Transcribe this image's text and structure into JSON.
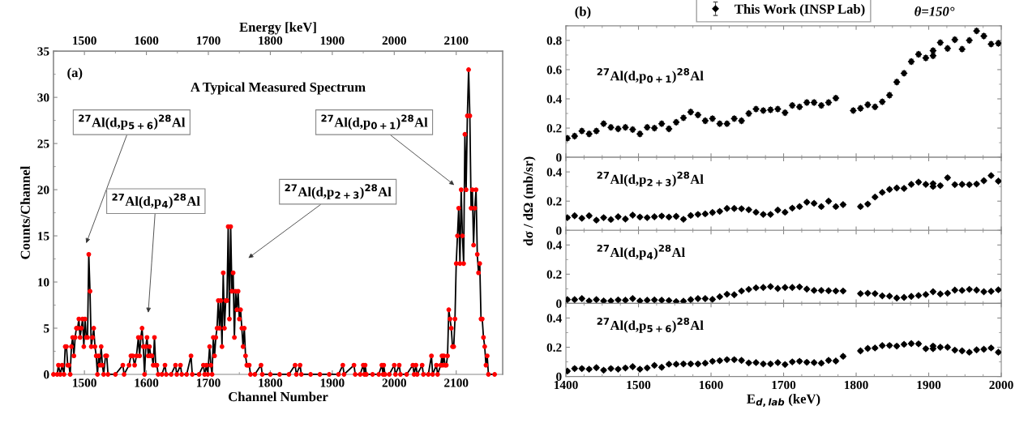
{
  "chart_data": [
    {
      "type": "line",
      "title": "A Typical Measured Spectrum",
      "xlabel": "Channel Number",
      "ylabel": "Counts/Channel",
      "x2label": "Energy [keV]",
      "xlim": [
        1450,
        2175
      ],
      "xticks": [
        1500,
        1600,
        1700,
        1800,
        1900,
        2000,
        2100
      ],
      "x2lim": [
        1450,
        2175
      ],
      "x2ticks": [
        1500,
        1600,
        1700,
        1800,
        1900,
        2000,
        2100
      ],
      "ylim": [
        0,
        35
      ],
      "yticks": [
        0,
        5,
        10,
        15,
        20,
        25,
        30,
        35
      ],
      "marker": "circle",
      "line_style": "solid",
      "annotations": [
        "(a)",
        "$^{27}$Al(d,p$_{5+6}$)$^{28}$Al",
        "$^{27}$Al(d,p$_{4}$)$^{28}$Al",
        "$^{27}$Al(d,p$_{2+3}$)$^{28}$Al",
        "$^{27}$Al(d,p$_{0+1}$)$^{28}$Al"
      ],
      "series": [
        {
          "color": "#ff0000",
          "x": [
            1450,
            1456,
            1458,
            1461,
            1464,
            1467,
            1469,
            1471,
            1473,
            1475,
            1477,
            1479,
            1481,
            1483,
            1485,
            1487,
            1489,
            1491,
            1493,
            1495,
            1497,
            1499,
            1501,
            1503,
            1505,
            1507,
            1509,
            1511,
            1513,
            1515,
            1517,
            1519,
            1521,
            1523,
            1525,
            1527,
            1529,
            1531,
            1534,
            1536,
            1538,
            1550,
            1562,
            1564,
            1572,
            1575,
            1578,
            1581,
            1584,
            1587,
            1589,
            1591,
            1593,
            1595,
            1597,
            1599,
            1601,
            1603,
            1605,
            1607,
            1609,
            1611,
            1613,
            1615,
            1617,
            1619,
            1625,
            1630,
            1632,
            1640,
            1647,
            1649,
            1655,
            1657,
            1665,
            1672,
            1674,
            1685,
            1692,
            1694,
            1697,
            1699,
            1702,
            1704,
            1706,
            1708,
            1710,
            1712,
            1714,
            1716,
            1718,
            1720,
            1722,
            1724,
            1726,
            1728,
            1730,
            1732,
            1734,
            1736,
            1738,
            1740,
            1742,
            1744,
            1746,
            1748,
            1750,
            1752,
            1754,
            1756,
            1758,
            1760,
            1762,
            1764,
            1766,
            1768,
            1775,
            1785,
            1787,
            1800,
            1815,
            1830,
            1840,
            1842,
            1848,
            1850,
            1865,
            1880,
            1895,
            1910,
            1917,
            1919,
            1935,
            1937,
            1945,
            1950,
            1952,
            1953,
            1955,
            1965,
            1975,
            1980,
            1982,
            1983,
            1985,
            1992,
            2000,
            2002,
            2008,
            2010,
            2020,
            2030,
            2032,
            2035,
            2037,
            2045,
            2047,
            2055,
            2060,
            2062,
            2068,
            2070,
            2075,
            2077,
            2078,
            2080,
            2082,
            2084,
            2086,
            2088,
            2090,
            2092,
            2094,
            2096,
            2098,
            2100,
            2102,
            2104,
            2106,
            2108,
            2110,
            2112,
            2114,
            2116,
            2118,
            2120,
            2122,
            2124,
            2126,
            2128,
            2130,
            2132,
            2134,
            2136,
            2138,
            2140,
            2142,
            2144,
            2146,
            2148,
            2150,
            2152,
            2162
          ],
          "values": [
            0,
            0,
            1,
            0,
            1,
            0,
            3,
            3,
            1,
            1,
            0,
            3,
            4,
            2,
            4,
            5,
            5,
            6,
            4,
            5,
            6,
            3,
            6,
            4,
            4,
            13,
            9,
            3,
            4,
            5,
            3,
            2,
            0,
            2,
            1,
            3,
            1,
            0,
            2,
            2,
            0,
            0,
            1,
            0,
            1,
            2,
            2,
            1,
            2,
            4,
            2,
            4,
            5,
            3,
            0,
            3,
            4,
            2,
            3,
            2,
            2,
            1,
            4,
            1,
            1,
            0,
            0,
            1,
            0,
            0,
            1,
            0,
            1,
            0,
            0,
            2,
            0,
            0,
            1,
            0,
            1,
            0,
            3,
            1,
            0,
            4,
            2,
            4,
            5,
            8,
            5,
            8,
            3,
            11,
            5,
            8,
            8,
            16,
            6,
            16,
            9,
            11,
            4,
            9,
            7,
            9,
            6,
            7,
            5,
            3,
            5,
            2,
            1,
            1,
            1,
            0,
            0,
            1,
            0,
            0,
            0,
            0,
            1,
            0,
            1,
            0,
            0,
            0,
            0,
            0,
            1,
            0,
            1,
            0,
            0,
            1,
            0,
            1,
            0,
            0,
            0,
            1,
            0,
            1,
            0,
            0,
            1,
            0,
            1,
            0,
            0,
            1,
            0,
            1,
            0,
            1,
            0,
            0,
            2,
            0,
            1,
            0,
            1,
            2,
            1,
            2,
            1,
            1,
            2,
            7,
            6,
            5,
            3,
            3,
            6,
            12,
            15,
            18,
            12,
            20,
            15,
            12,
            26,
            20,
            28,
            33,
            28,
            18,
            20,
            14,
            18,
            20,
            13,
            11,
            12,
            6,
            6,
            4,
            3,
            1,
            2,
            0,
            0
          ]
        }
      ]
    },
    {
      "type": "scatter",
      "title": "$^{27}$Al(d,p$_{0+1}$)$^{28}$Al",
      "ylabel": "dσ / dΩ (mb/sr)",
      "annotations": [
        "(b)",
        "θ=150°"
      ],
      "xlim": [
        1400,
        2000
      ],
      "xticks": [
        1400,
        1500,
        1600,
        1700,
        1800,
        1900,
        2000
      ],
      "ylim": [
        0,
        0.9
      ],
      "yticks": [
        0,
        0.2,
        0.4,
        0.6,
        0.8
      ],
      "tick_labels": "y",
      "legend": "top",
      "marker": "diamond",
      "series": [
        {
          "name": "This Work (INSP Lab)",
          "color": "#000000",
          "x": [
            1402,
            1412,
            1422,
            1432,
            1442,
            1452,
            1462,
            1472,
            1482,
            1492,
            1502,
            1512,
            1522,
            1532,
            1542,
            1552,
            1562,
            1572,
            1582,
            1592,
            1602,
            1612,
            1622,
            1632,
            1642,
            1652,
            1662,
            1672,
            1682,
            1692,
            1702,
            1712,
            1722,
            1732,
            1742,
            1752,
            1762,
            1772,
            1796,
            1806,
            1816,
            1826,
            1836,
            1846,
            1856,
            1866,
            1876,
            1886,
            1896,
            1906,
            1906,
            1916,
            1926,
            1936,
            1946,
            1956,
            1966,
            1976,
            1986,
            1996
          ],
          "values": [
            0.13,
            0.145,
            0.18,
            0.16,
            0.18,
            0.23,
            0.205,
            0.195,
            0.205,
            0.19,
            0.16,
            0.205,
            0.2,
            0.23,
            0.195,
            0.24,
            0.27,
            0.31,
            0.29,
            0.25,
            0.265,
            0.23,
            0.23,
            0.265,
            0.25,
            0.3,
            0.33,
            0.32,
            0.325,
            0.33,
            0.305,
            0.355,
            0.345,
            0.375,
            0.375,
            0.355,
            0.375,
            0.405,
            0.32,
            0.335,
            0.36,
            0.345,
            0.38,
            0.425,
            0.515,
            0.575,
            0.655,
            0.705,
            0.68,
            0.695,
            0.73,
            0.785,
            0.745,
            0.805,
            0.74,
            0.8,
            0.865,
            0.83,
            0.775,
            0.78
          ],
          "errors": [
            0.015,
            0.015,
            0.015,
            0.015,
            0.015,
            0.015,
            0.015,
            0.015,
            0.015,
            0.015,
            0.015,
            0.015,
            0.015,
            0.015,
            0.015,
            0.015,
            0.015,
            0.015,
            0.015,
            0.015,
            0.015,
            0.015,
            0.015,
            0.015,
            0.015,
            0.015,
            0.015,
            0.015,
            0.015,
            0.015,
            0.015,
            0.015,
            0.015,
            0.015,
            0.015,
            0.015,
            0.015,
            0.015,
            0.015,
            0.015,
            0.015,
            0.015,
            0.015,
            0.015,
            0.015,
            0.015,
            0.015,
            0.015,
            0.015,
            0.015,
            0.015,
            0.015,
            0.015,
            0.015,
            0.015,
            0.015,
            0.015,
            0.015,
            0.015,
            0.015
          ]
        }
      ]
    },
    {
      "type": "scatter",
      "title": "$^{27}$Al(d,p$_{2+3}$)$^{28}$Al",
      "xlim": [
        1400,
        2000
      ],
      "xticks": [
        1400,
        1500,
        1600,
        1700,
        1800,
        1900,
        2000
      ],
      "ylim": [
        0,
        0.5
      ],
      "yticks": [
        0,
        0.2,
        0.4
      ],
      "tick_labels": "y",
      "marker": "diamond",
      "series": [
        {
          "color": "#000000",
          "x": [
            1402,
            1412,
            1422,
            1432,
            1442,
            1452,
            1462,
            1472,
            1482,
            1492,
            1502,
            1512,
            1522,
            1532,
            1542,
            1552,
            1562,
            1572,
            1582,
            1592,
            1602,
            1612,
            1622,
            1632,
            1642,
            1652,
            1662,
            1672,
            1682,
            1692,
            1702,
            1712,
            1722,
            1732,
            1742,
            1752,
            1762,
            1772,
            1782,
            1806,
            1816,
            1826,
            1836,
            1846,
            1856,
            1866,
            1876,
            1886,
            1896,
            1906,
            1906,
            1916,
            1926,
            1936,
            1946,
            1956,
            1966,
            1976,
            1986,
            1996
          ],
          "values": [
            0.087,
            0.1,
            0.083,
            0.1,
            0.07,
            0.087,
            0.074,
            0.093,
            0.078,
            0.104,
            0.091,
            0.087,
            0.093,
            0.098,
            0.091,
            0.096,
            0.076,
            0.102,
            0.109,
            0.113,
            0.122,
            0.13,
            0.15,
            0.15,
            0.148,
            0.141,
            0.124,
            0.109,
            0.109,
            0.139,
            0.124,
            0.152,
            0.163,
            0.193,
            0.185,
            0.163,
            0.2,
            0.163,
            0.176,
            0.163,
            0.18,
            0.228,
            0.26,
            0.28,
            0.29,
            0.287,
            0.315,
            0.33,
            0.315,
            0.32,
            0.3,
            0.306,
            0.36,
            0.313,
            0.315,
            0.313,
            0.317,
            0.34,
            0.375,
            0.337
          ],
          "errors": [
            0.01,
            0.01,
            0.01,
            0.01,
            0.01,
            0.01,
            0.01,
            0.01,
            0.01,
            0.01,
            0.01,
            0.01,
            0.01,
            0.01,
            0.01,
            0.01,
            0.01,
            0.01,
            0.01,
            0.01,
            0.01,
            0.01,
            0.01,
            0.01,
            0.01,
            0.01,
            0.01,
            0.01,
            0.01,
            0.01,
            0.01,
            0.01,
            0.01,
            0.01,
            0.01,
            0.01,
            0.01,
            0.01,
            0.01,
            0.01,
            0.01,
            0.01,
            0.01,
            0.01,
            0.01,
            0.01,
            0.01,
            0.01,
            0.01,
            0.01,
            0.01,
            0.01,
            0.01,
            0.01,
            0.01,
            0.01,
            0.01,
            0.01,
            0.01,
            0.01
          ]
        }
      ]
    },
    {
      "type": "scatter",
      "title": "$^{27}$Al(d,p$_{4}$)$^{28}$Al",
      "xlim": [
        1400,
        2000
      ],
      "xticks": [
        1400,
        1500,
        1600,
        1700,
        1800,
        1900,
        2000
      ],
      "ylim": [
        0,
        0.5
      ],
      "yticks": [
        0,
        0.2,
        0.4
      ],
      "tick_labels": "y",
      "marker": "diamond",
      "series": [
        {
          "color": "#000000",
          "x": [
            1402,
            1412,
            1422,
            1432,
            1442,
            1452,
            1462,
            1472,
            1482,
            1492,
            1502,
            1512,
            1522,
            1532,
            1542,
            1552,
            1562,
            1572,
            1582,
            1592,
            1602,
            1612,
            1622,
            1632,
            1642,
            1652,
            1662,
            1672,
            1682,
            1692,
            1702,
            1712,
            1722,
            1732,
            1742,
            1752,
            1762,
            1772,
            1782,
            1806,
            1816,
            1826,
            1836,
            1846,
            1856,
            1866,
            1876,
            1886,
            1896,
            1906,
            1916,
            1926,
            1936,
            1946,
            1956,
            1966,
            1976,
            1986,
            1996
          ],
          "values": [
            0.026,
            0.026,
            0.033,
            0.017,
            0.026,
            0.017,
            0.017,
            0.024,
            0.022,
            0.033,
            0.017,
            0.022,
            0.024,
            0.022,
            0.02,
            0.013,
            0.015,
            0.026,
            0.033,
            0.033,
            0.028,
            0.046,
            0.063,
            0.059,
            0.085,
            0.096,
            0.107,
            0.109,
            0.115,
            0.102,
            0.109,
            0.109,
            0.113,
            0.098,
            0.089,
            0.089,
            0.087,
            0.085,
            0.085,
            0.067,
            0.07,
            0.067,
            0.052,
            0.05,
            0.037,
            0.041,
            0.048,
            0.054,
            0.061,
            0.08,
            0.065,
            0.07,
            0.091,
            0.089,
            0.096,
            0.091,
            0.08,
            0.083,
            0.093
          ],
          "errors": [
            0.008,
            0.008,
            0.008,
            0.008,
            0.008,
            0.008,
            0.008,
            0.008,
            0.008,
            0.008,
            0.008,
            0.008,
            0.008,
            0.008,
            0.008,
            0.008,
            0.008,
            0.008,
            0.008,
            0.008,
            0.008,
            0.008,
            0.008,
            0.008,
            0.008,
            0.008,
            0.008,
            0.008,
            0.008,
            0.008,
            0.008,
            0.008,
            0.008,
            0.008,
            0.008,
            0.008,
            0.008,
            0.008,
            0.008,
            0.008,
            0.008,
            0.008,
            0.008,
            0.008,
            0.008,
            0.008,
            0.008,
            0.008,
            0.008,
            0.008,
            0.008,
            0.008,
            0.008,
            0.008,
            0.008,
            0.008,
            0.008,
            0.008,
            0.008
          ]
        }
      ]
    },
    {
      "type": "scatter",
      "title": "$^{27}$Al(d,p$_{5+6}$)$^{28}$Al",
      "xlabel": "E$_{d,lab}$ (keV)",
      "xlim": [
        1400,
        2000
      ],
      "xticks": [
        1400,
        1500,
        1600,
        1700,
        1800,
        1900,
        2000
      ],
      "ylim": [
        0,
        0.5
      ],
      "yticks": [
        0,
        0.2,
        0.4
      ],
      "marker": "diamond",
      "series": [
        {
          "color": "#000000",
          "x": [
            1402,
            1412,
            1422,
            1432,
            1442,
            1452,
            1462,
            1472,
            1482,
            1492,
            1502,
            1512,
            1522,
            1532,
            1542,
            1552,
            1562,
            1572,
            1582,
            1592,
            1602,
            1612,
            1622,
            1632,
            1642,
            1652,
            1662,
            1672,
            1682,
            1692,
            1702,
            1712,
            1722,
            1732,
            1742,
            1752,
            1762,
            1772,
            1782,
            1806,
            1816,
            1826,
            1836,
            1846,
            1856,
            1866,
            1876,
            1886,
            1896,
            1906,
            1906,
            1916,
            1926,
            1936,
            1946,
            1956,
            1966,
            1976,
            1986,
            1996
          ],
          "values": [
            0.037,
            0.054,
            0.054,
            0.05,
            0.06,
            0.043,
            0.054,
            0.05,
            0.058,
            0.067,
            0.05,
            0.058,
            0.076,
            0.063,
            0.084,
            0.084,
            0.086,
            0.086,
            0.086,
            0.091,
            0.104,
            0.108,
            0.115,
            0.115,
            0.11,
            0.093,
            0.095,
            0.086,
            0.086,
            0.095,
            0.082,
            0.1,
            0.104,
            0.097,
            0.095,
            0.091,
            0.11,
            0.106,
            0.138,
            0.175,
            0.192,
            0.195,
            0.211,
            0.212,
            0.208,
            0.22,
            0.225,
            0.223,
            0.19,
            0.208,
            0.19,
            0.2,
            0.2,
            0.18,
            0.175,
            0.166,
            0.182,
            0.186,
            0.195,
            0.166
          ],
          "errors": [
            0.01,
            0.01,
            0.01,
            0.01,
            0.01,
            0.01,
            0.01,
            0.01,
            0.01,
            0.01,
            0.01,
            0.01,
            0.01,
            0.01,
            0.01,
            0.01,
            0.01,
            0.01,
            0.01,
            0.01,
            0.01,
            0.01,
            0.01,
            0.01,
            0.01,
            0.01,
            0.01,
            0.01,
            0.01,
            0.01,
            0.01,
            0.01,
            0.01,
            0.01,
            0.01,
            0.01,
            0.01,
            0.01,
            0.01,
            0.01,
            0.01,
            0.01,
            0.01,
            0.01,
            0.01,
            0.01,
            0.01,
            0.01,
            0.01,
            0.01,
            0.01,
            0.01,
            0.01,
            0.01,
            0.01,
            0.01,
            0.01,
            0.01,
            0.01,
            0.01
          ]
        }
      ]
    }
  ]
}
